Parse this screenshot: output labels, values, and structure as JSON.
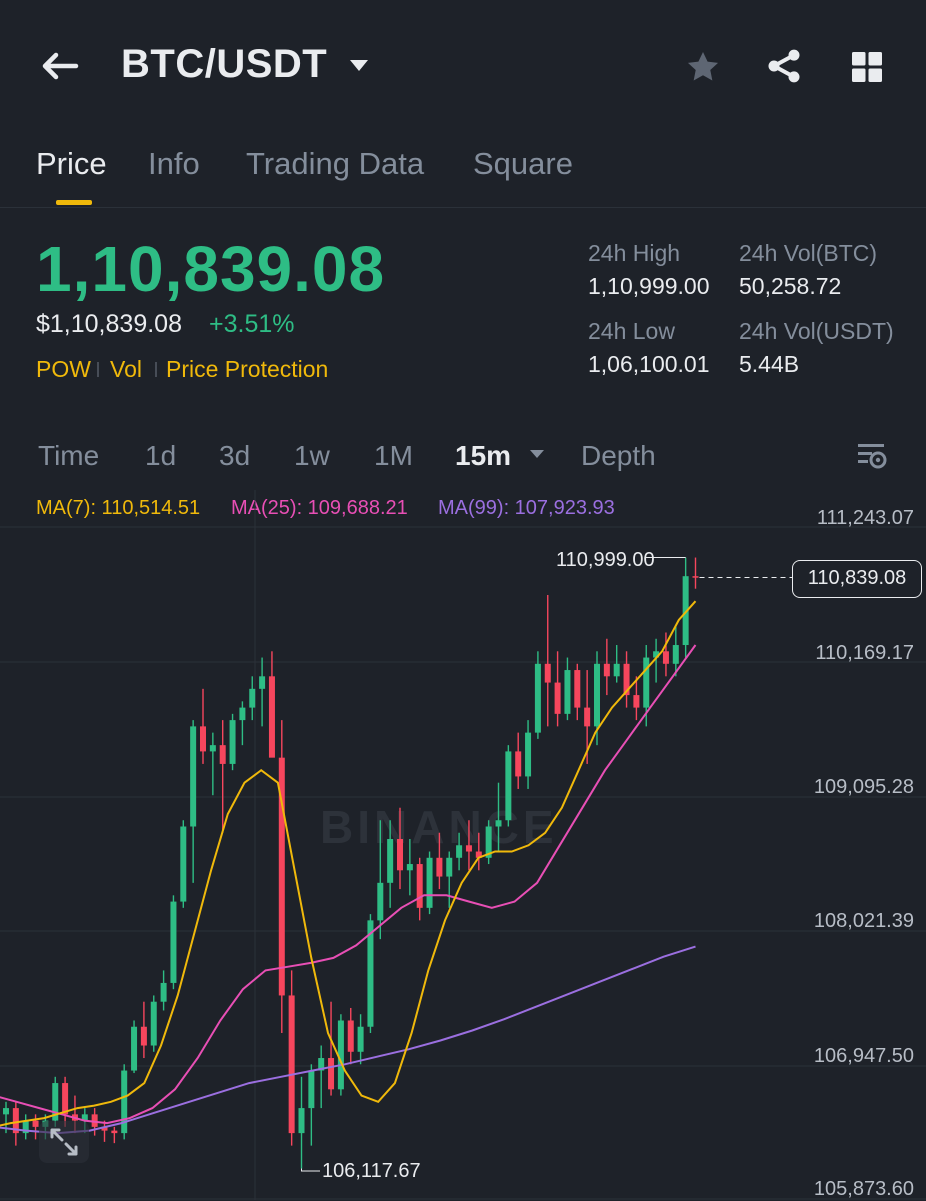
{
  "header": {
    "pair": "BTC/USDT",
    "icons": [
      "back-arrow-icon",
      "dropdown-caret-icon",
      "star-icon",
      "share-icon",
      "grid-icon"
    ]
  },
  "tabs": [
    {
      "label": "Price",
      "active": true
    },
    {
      "label": "Info",
      "active": false
    },
    {
      "label": "Trading Data",
      "active": false
    },
    {
      "label": "Square",
      "active": false
    }
  ],
  "ticker": {
    "last_price": "1,10,839.08",
    "fiat_price": "$1,10,839.08",
    "change": "+3.51%",
    "tags": [
      "POW",
      "Vol",
      "Price Protection"
    ],
    "high_label": "24h High",
    "high_value": "1,10,999.00",
    "low_label": "24h Low",
    "low_value": "1,06,100.01",
    "vol_btc_label": "24h Vol(BTC)",
    "vol_btc_value": "50,258.72",
    "vol_usdt_label": "24h Vol(USDT)",
    "vol_usdt_value": "5.44B"
  },
  "intervals": [
    {
      "label": "Time",
      "active": false
    },
    {
      "label": "1d",
      "active": false
    },
    {
      "label": "3d",
      "active": false
    },
    {
      "label": "1w",
      "active": false
    },
    {
      "label": "1M",
      "active": false
    },
    {
      "label": "15m",
      "active": true
    },
    {
      "label": "Depth",
      "active": false
    }
  ],
  "ma": {
    "ma7": "MA(7): 110,514.51",
    "ma25": "MA(25): 109,688.21",
    "ma99": "MA(99): 107,923.93"
  },
  "colors": {
    "up": "#2ebd85",
    "down": "#f6465d",
    "accent": "#f0b90b",
    "ma7": "#f0b90b",
    "ma25": "#e84fb5",
    "ma99": "#9b6fe0"
  },
  "watermark": "BINANCE",
  "chart_data": {
    "type": "candlestick",
    "y_ticks": [
      "111,243.07",
      "110,169.17",
      "109,095.28",
      "108,021.39",
      "106,947.50",
      "105,873.60"
    ],
    "ylim": [
      105873.6,
      111243.07
    ],
    "last_price_label": "110,839.08",
    "high_label": "110,999.00",
    "low_label": "106,117.67",
    "candles": [
      [
        106550,
        106650,
        106400,
        106600
      ],
      [
        106600,
        106650,
        106300,
        106400
      ],
      [
        106400,
        106550,
        106350,
        106500
      ],
      [
        106500,
        106550,
        106350,
        106450
      ],
      [
        106450,
        106550,
        106350,
        106500
      ],
      [
        106500,
        106850,
        106450,
        106800
      ],
      [
        106800,
        106850,
        106450,
        106550
      ],
      [
        106550,
        106700,
        106400,
        106500
      ],
      [
        106500,
        106600,
        106400,
        106550
      ],
      [
        106550,
        106600,
        106380,
        106450
      ],
      [
        106450,
        106500,
        106330,
        106420
      ],
      [
        106420,
        106450,
        106320,
        106400
      ],
      [
        106400,
        106950,
        106350,
        106900
      ],
      [
        106900,
        107300,
        106880,
        107250
      ],
      [
        107250,
        107450,
        107000,
        107100
      ],
      [
        107100,
        107500,
        107050,
        107450
      ],
      [
        107450,
        107700,
        107380,
        107600
      ],
      [
        107600,
        108300,
        107550,
        108250
      ],
      [
        108250,
        108900,
        108200,
        108850
      ],
      [
        108850,
        109700,
        108400,
        109650
      ],
      [
        109650,
        109950,
        109350,
        109450
      ],
      [
        109450,
        109600,
        109100,
        109500
      ],
      [
        109500,
        109700,
        108800,
        109350
      ],
      [
        109350,
        109750,
        109300,
        109700
      ],
      [
        109700,
        109850,
        109500,
        109800
      ],
      [
        109800,
        110050,
        109700,
        109950
      ],
      [
        109950,
        110200,
        109650,
        110050
      ],
      [
        110050,
        110250,
        109450,
        109400
      ],
      [
        109400,
        109700,
        107200,
        107500
      ],
      [
        107500,
        107700,
        106300,
        106400
      ],
      [
        106400,
        106850,
        106117.67,
        106600
      ],
      [
        106600,
        106950,
        106300,
        106900
      ],
      [
        106900,
        107100,
        106600,
        107000
      ],
      [
        107000,
        107450,
        106700,
        106750
      ],
      [
        106750,
        107350,
        106700,
        107300
      ],
      [
        107300,
        107400,
        106950,
        107050
      ],
      [
        107050,
        107350,
        106950,
        107250
      ],
      [
        107250,
        108150,
        107200,
        108100
      ],
      [
        108100,
        108900,
        107950,
        108400
      ],
      [
        108400,
        108900,
        108200,
        108750
      ],
      [
        108750,
        109000,
        108350,
        108500
      ],
      [
        108500,
        108750,
        108300,
        108550
      ],
      [
        108550,
        108600,
        108100,
        108200
      ],
      [
        108200,
        108650,
        108150,
        108600
      ],
      [
        108600,
        108800,
        108350,
        108450
      ],
      [
        108450,
        108650,
        108200,
        108600
      ],
      [
        108600,
        108800,
        108500,
        108700
      ],
      [
        108700,
        108900,
        108500,
        108650
      ],
      [
        108650,
        108800,
        108500,
        108600
      ],
      [
        108600,
        108900,
        108550,
        108850
      ],
      [
        108850,
        109200,
        108650,
        108900
      ],
      [
        108900,
        109500,
        108850,
        109450
      ],
      [
        109450,
        109600,
        109150,
        109250
      ],
      [
        109250,
        109700,
        109150,
        109600
      ],
      [
        109600,
        110250,
        109550,
        110150
      ],
      [
        110150,
        110700,
        109650,
        110000
      ],
      [
        110000,
        110250,
        109650,
        109750
      ],
      [
        109750,
        110200,
        109700,
        110100
      ],
      [
        110100,
        110150,
        109700,
        109800
      ],
      [
        109800,
        110100,
        109350,
        109650
      ],
      [
        109650,
        110250,
        109500,
        110150
      ],
      [
        110150,
        110350,
        109900,
        110050
      ],
      [
        110050,
        110300,
        110000,
        110150
      ],
      [
        110150,
        110250,
        109800,
        109900
      ],
      [
        109900,
        110050,
        109700,
        109800
      ],
      [
        109800,
        110300,
        109650,
        110200
      ],
      [
        110200,
        110350,
        110000,
        110250
      ],
      [
        110250,
        110400,
        110050,
        110150
      ],
      [
        110150,
        110450,
        110050,
        110300
      ],
      [
        110300,
        110999,
        110200,
        110850
      ],
      [
        110850,
        110999,
        110750,
        110839.08
      ]
    ],
    "ma7_approx": [
      106450,
      106480,
      106500,
      106520,
      106560,
      106600,
      106620,
      106650,
      106700,
      106800,
      107100,
      107500,
      108000,
      108500,
      108950,
      109200,
      109300,
      109200,
      108500,
      107800,
      107200,
      106900,
      106700,
      106650,
      106800,
      107200,
      107700,
      108100,
      108400,
      108600,
      108650,
      108650,
      108700,
      108800,
      109000,
      109300,
      109600,
      109800,
      109950,
      110100,
      110250,
      110500,
      110650
    ],
    "ma25_approx": [
      106700,
      106650,
      106600,
      106550,
      106500,
      106480,
      106520,
      106600,
      106750,
      107000,
      107300,
      107550,
      107700,
      107730,
      107760,
      107800,
      107900,
      108050,
      108200,
      108300,
      108300,
      108250,
      108200,
      108250,
      108400,
      108700,
      109000,
      109300,
      109550,
      109800,
      110050,
      110300
    ],
    "ma99_approx": [
      106450,
      106420,
      106400,
      106420,
      106480,
      106560,
      106640,
      106720,
      106800,
      106850,
      106900,
      106950,
      107010,
      107070,
      107140,
      107220,
      107310,
      107410,
      107510,
      107610,
      107710,
      107810,
      107890
    ]
  }
}
